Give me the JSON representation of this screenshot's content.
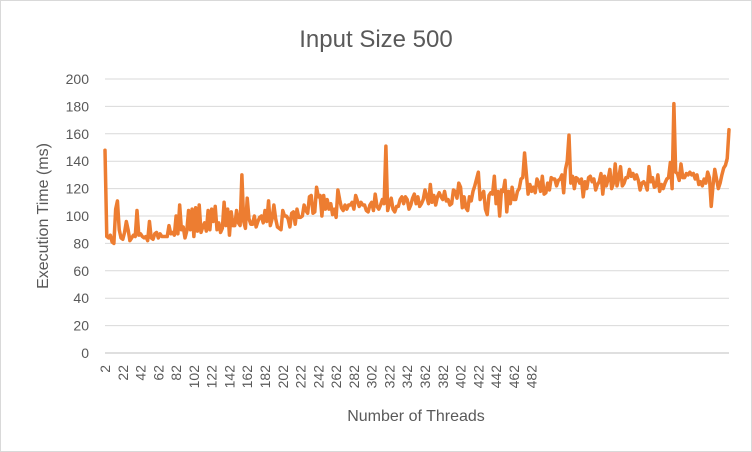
{
  "chart_data": {
    "type": "line",
    "title": "Input Size 500",
    "xlabel": "Number of Threads",
    "ylabel": "Execution Time  (ms)",
    "x_start": 2,
    "x_step": 2,
    "xlim": [
      2,
      500
    ],
    "x_tick_labels": [
      "2",
      "22",
      "42",
      "62",
      "82",
      "102",
      "122",
      "142",
      "162",
      "182",
      "202",
      "222",
      "242",
      "262",
      "282",
      "302",
      "322",
      "342",
      "362",
      "382",
      "402",
      "422",
      "442",
      "462",
      "482"
    ],
    "ylim": [
      0,
      200
    ],
    "y_ticks": [
      0,
      20,
      40,
      60,
      80,
      100,
      120,
      140,
      160,
      180,
      200
    ],
    "grid": true,
    "legend": "none",
    "colors": {
      "series": "#ED7D31",
      "grid": "#D9D9D9",
      "text": "#595959"
    },
    "series": [
      {
        "values": [
          148,
          85,
          84,
          86,
          81,
          80,
          105,
          111,
          90,
          84,
          83,
          88,
          96,
          90,
          82,
          84,
          86,
          85,
          104,
          86,
          87,
          85,
          84,
          85,
          82,
          96,
          84,
          83,
          87,
          88,
          84,
          87,
          85,
          85,
          85,
          85,
          93,
          87,
          88,
          86,
          100,
          87,
          108,
          90,
          92,
          84,
          89,
          104,
          90,
          105,
          85,
          106,
          89,
          108,
          88,
          92,
          95,
          89,
          104,
          90,
          105,
          96,
          107,
          90,
          95,
          88,
          91,
          110,
          93,
          105,
          86,
          103,
          93,
          93,
          104,
          95,
          93,
          130,
          96,
          91,
          113,
          98,
          94,
          94,
          100,
          92,
          96,
          99,
          100,
          95,
          104,
          96,
          111,
          93,
          98,
          108,
          98,
          92,
          91,
          90,
          104,
          100,
          100,
          98,
          92,
          102,
          103,
          94,
          105,
          99,
          99,
          100,
          108,
          104,
          102,
          114,
          115,
          102,
          103,
          121,
          114,
          115,
          100,
          115,
          105,
          112,
          105,
          109,
          101,
          105,
          99,
          119,
          112,
          106,
          104,
          108,
          105,
          108,
          108,
          110,
          105,
          115,
          111,
          107,
          110,
          108,
          108,
          104,
          103,
          108,
          110,
          104,
          116,
          107,
          105,
          108,
          112,
          109,
          151,
          104,
          109,
          113,
          105,
          103,
          107,
          107,
          112,
          114,
          109,
          114,
          112,
          105,
          108,
          113,
          116,
          109,
          114,
          107,
          109,
          112,
          119,
          114,
          109,
          123,
          110,
          115,
          108,
          114,
          117,
          114,
          112,
          118,
          111,
          112,
          108,
          109,
          119,
          118,
          113,
          124,
          121,
          106,
          114,
          106,
          104,
          114,
          111,
          118,
          122,
          127,
          132,
          112,
          115,
          118,
          105,
          101,
          115,
          117,
          116,
          129,
          109,
          118,
          100,
          119,
          118,
          126,
          103,
          118,
          109,
          121,
          112,
          112,
          118,
          120,
          127,
          128,
          146,
          131,
          116,
          123,
          118,
          121,
          117,
          127,
          124,
          118,
          129,
          116,
          117,
          124,
          119,
          128,
          127,
          127,
          122,
          126,
          127,
          130,
          117,
          134,
          140,
          159,
          124,
          129,
          120,
          128,
          127,
          124,
          127,
          114,
          125,
          120,
          128,
          129,
          125,
          127,
          119,
          123,
          125,
          131,
          116,
          129,
          122,
          127,
          134,
          120,
          124,
          138,
          122,
          128,
          136,
          122,
          124,
          128,
          128,
          134,
          129,
          131,
          127,
          130,
          126,
          119,
          124,
          125,
          123,
          119,
          136,
          125,
          128,
          121,
          122,
          130,
          118,
          123,
          120,
          124,
          127,
          128,
          139,
          120,
          182,
          132,
          131,
          126,
          138,
          128,
          128,
          131,
          130,
          132,
          130,
          131,
          127,
          130,
          123,
          125,
          122,
          127,
          124,
          132,
          128,
          107,
          122,
          134,
          127,
          120,
          124,
          130,
          135,
          137,
          142,
          163
        ]
      }
    ]
  }
}
